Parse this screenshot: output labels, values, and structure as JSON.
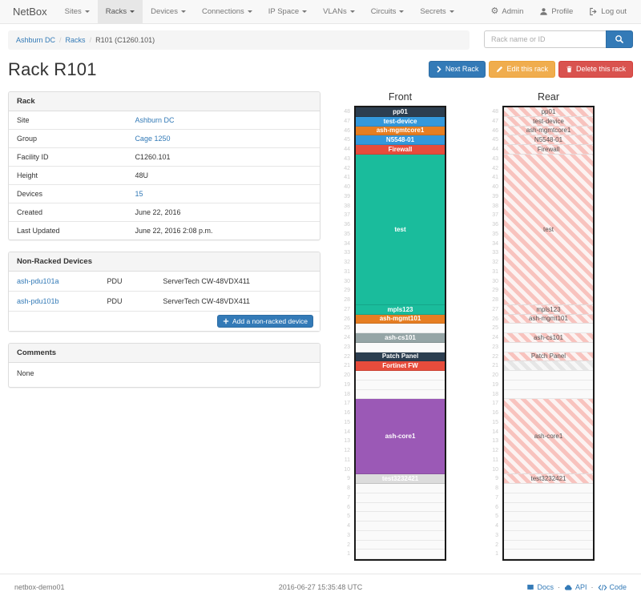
{
  "navbar": {
    "brand": "NetBox",
    "items": [
      {
        "label": "Sites",
        "active": false
      },
      {
        "label": "Racks",
        "active": true
      },
      {
        "label": "Devices",
        "active": false
      },
      {
        "label": "Connections",
        "active": false
      },
      {
        "label": "IP Space",
        "active": false
      },
      {
        "label": "VLANs",
        "active": false
      },
      {
        "label": "Circuits",
        "active": false
      },
      {
        "label": "Secrets",
        "active": false
      }
    ],
    "right": [
      {
        "label": "Admin",
        "icon": "gear-icon"
      },
      {
        "label": "Profile",
        "icon": "user-icon"
      },
      {
        "label": "Log out",
        "icon": "log-out-icon"
      }
    ]
  },
  "breadcrumb": {
    "crumbs": [
      {
        "label": "Ashburn DC",
        "link": true
      },
      {
        "label": "Racks",
        "link": true
      },
      {
        "label": "R101 (C1260.101)",
        "link": false
      }
    ]
  },
  "search": {
    "placeholder": "Rack name or ID"
  },
  "page_title": "Rack R101",
  "actions": {
    "next_rack": "Next Rack",
    "edit": "Edit this rack",
    "delete": "Delete this rack"
  },
  "rack_info": {
    "title": "Rack",
    "rows": [
      {
        "label": "Site",
        "value": "Ashburn DC",
        "link": true
      },
      {
        "label": "Group",
        "value": "Cage 1250",
        "link": true
      },
      {
        "label": "Facility ID",
        "value": "C1260.101",
        "link": false
      },
      {
        "label": "Height",
        "value": "48U",
        "link": false
      },
      {
        "label": "Devices",
        "value": "15",
        "link": true
      },
      {
        "label": "Created",
        "value": "June 22, 2016",
        "link": false
      },
      {
        "label": "Last Updated",
        "value": "June 22, 2016 2:08 p.m.",
        "link": false
      }
    ]
  },
  "non_racked": {
    "title": "Non-Racked Devices",
    "devices": [
      {
        "name": "ash-pdu101a",
        "role": "PDU",
        "model": "ServerTech CW-48VDX411"
      },
      {
        "name": "ash-pdu101b",
        "role": "PDU",
        "model": "ServerTech CW-48VDX411"
      }
    ],
    "add_button": "Add a non-racked device"
  },
  "comments": {
    "title": "Comments",
    "body": "None"
  },
  "rack_elevation": {
    "front_title": "Front",
    "rear_title": "Rear",
    "total_units": 48,
    "palette": {
      "navy": "#2c3e50",
      "blue": "#3498db",
      "orange": "#e67e22",
      "red": "#e74c3c",
      "teal": "#1abc9c",
      "gray": "#95a5a6",
      "purple": "#9b59b6",
      "lightgray": "#dcdcdc"
    },
    "slots": [
      {
        "type": "device",
        "name": "pp01",
        "units": 1,
        "color": "navy",
        "rear": "striped-label"
      },
      {
        "type": "device",
        "name": "test-device",
        "units": 1,
        "color": "blue",
        "rear": "striped-label"
      },
      {
        "type": "device",
        "name": "ash-mgmtcore1",
        "units": 1,
        "color": "orange",
        "rear": "striped-label"
      },
      {
        "type": "device",
        "name": "N5548-01",
        "units": 1,
        "color": "blue",
        "rear": "striped-label"
      },
      {
        "type": "device",
        "name": "Firewall",
        "units": 1,
        "color": "red",
        "rear": "striped-label"
      },
      {
        "type": "device",
        "name": "test",
        "units": 16,
        "color": "teal",
        "rear": "striped-label"
      },
      {
        "type": "device",
        "name": "mpls123",
        "units": 1,
        "color": "teal",
        "rear": "striped-label"
      },
      {
        "type": "device",
        "name": "ash-mgmt101",
        "units": 1,
        "color": "orange",
        "rear": "striped-label"
      },
      {
        "type": "empty",
        "units": 1
      },
      {
        "type": "device",
        "name": "ash-cs101",
        "units": 1,
        "color": "gray",
        "rear": "striped-label"
      },
      {
        "type": "empty",
        "units": 1
      },
      {
        "type": "device",
        "name": "Patch Panel",
        "units": 1,
        "color": "navy",
        "rear": "striped-label"
      },
      {
        "type": "device",
        "name": "Fortinet FW",
        "units": 1,
        "color": "red",
        "rear": "gray-nolabel"
      },
      {
        "type": "empty",
        "units": 3
      },
      {
        "type": "device",
        "name": "ash-core1",
        "units": 8,
        "color": "purple",
        "rear": "striped-label"
      },
      {
        "type": "device",
        "name": "test3232421",
        "units": 1,
        "color": "lightgray",
        "rear": "striped-label"
      },
      {
        "type": "empty",
        "units": 8
      }
    ]
  },
  "footer": {
    "host": "netbox-demo01",
    "timestamp": "2016-06-27 15:35:48 UTC",
    "links": [
      {
        "label": "Docs",
        "icon": "book-icon"
      },
      {
        "label": "API",
        "icon": "cloud-icon"
      },
      {
        "label": "Code",
        "icon": "code-icon"
      }
    ]
  },
  "theme": {
    "primary": "#337ab7",
    "warning": "#f0ad4e",
    "danger": "#d9534f",
    "navbar_bg": "#f8f8f8",
    "navbar_active_bg": "#e7e7e7"
  }
}
